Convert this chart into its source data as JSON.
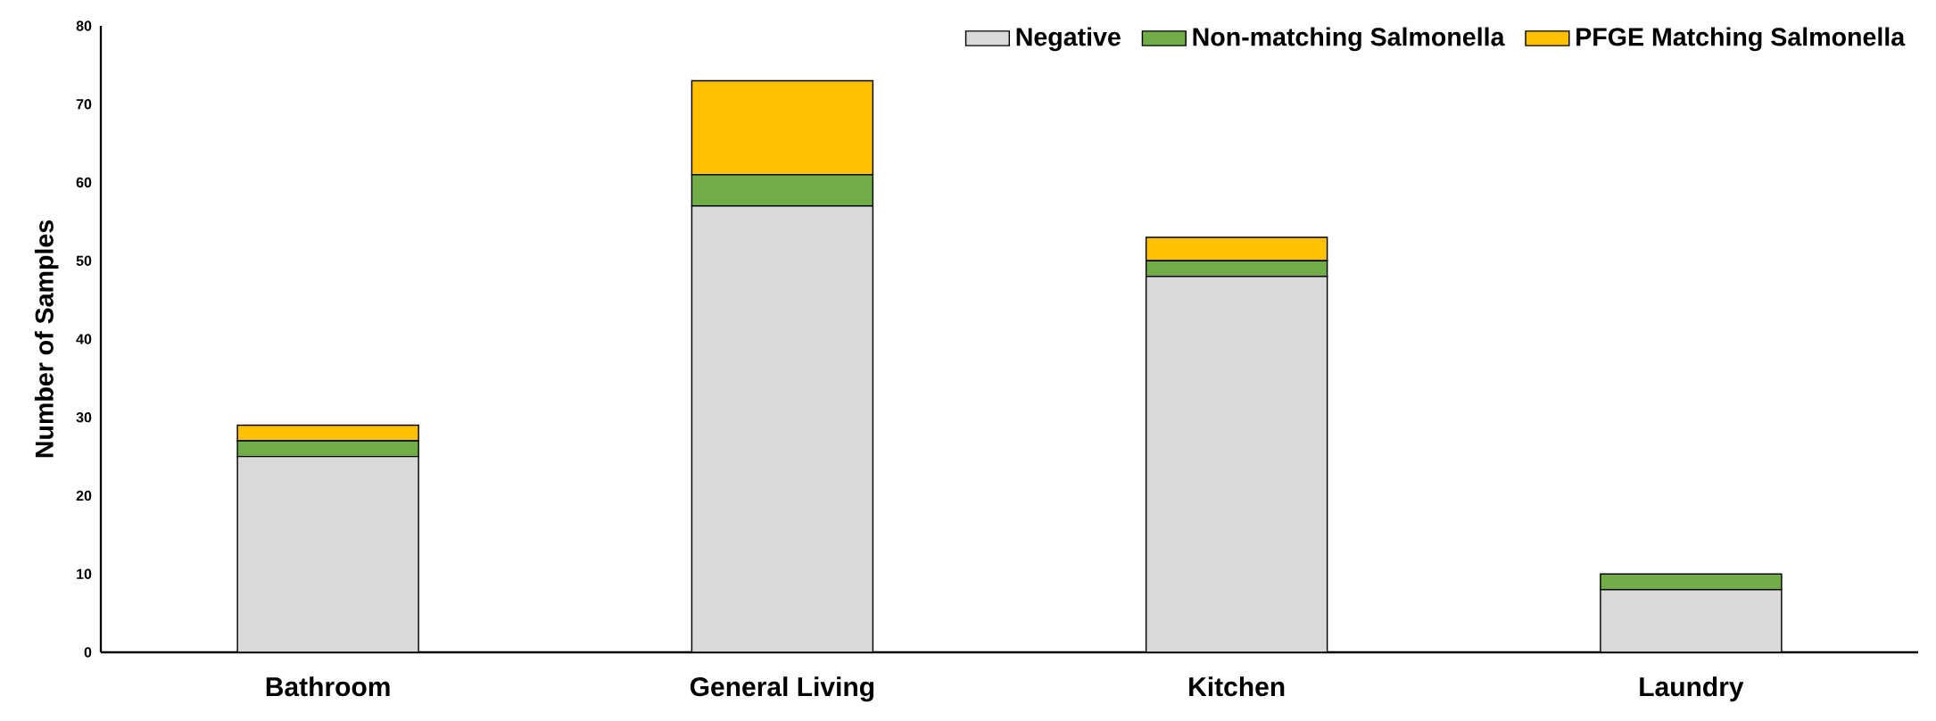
{
  "chart_data": {
    "type": "bar",
    "stacked": true,
    "ylabel": "Number of Samples",
    "categories": [
      "Bathroom",
      "General Living",
      "Kitchen",
      "Laundry"
    ],
    "series": [
      {
        "name": "Negative",
        "color": "#d9d9d9",
        "values": [
          25,
          57,
          48,
          8
        ]
      },
      {
        "name": "Non-matching Salmonella",
        "color": "#70ad47",
        "values": [
          2,
          4,
          2,
          2
        ]
      },
      {
        "name": "PFGE Matching Salmonella",
        "color": "#ffc000",
        "values": [
          2,
          12,
          3,
          0
        ]
      }
    ],
    "ylim": [
      0,
      80
    ],
    "yticks": [
      0,
      10,
      20,
      30,
      40,
      50,
      60,
      70,
      80
    ],
    "legend": "top right",
    "grid": false
  }
}
